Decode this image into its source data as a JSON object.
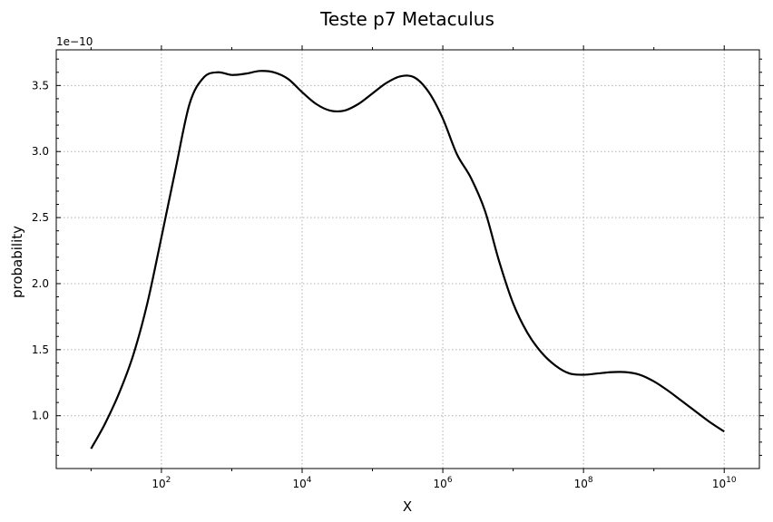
{
  "chart_data": {
    "type": "line",
    "title": "Teste p7 Metaculus",
    "xlabel": "X",
    "ylabel": "probability",
    "xscale": "log",
    "xlim": [
      3.2,
      31623000000
    ],
    "ylim": [
      6e-11,
      3.77e-10
    ],
    "y_offset_label": "1e−10",
    "x_major_ticks": [
      100,
      10000,
      1000000,
      100000000,
      10000000000
    ],
    "x_tick_labels": [
      {
        "base": "10",
        "exp": "2"
      },
      {
        "base": "10",
        "exp": "4"
      },
      {
        "base": "10",
        "exp": "6"
      },
      {
        "base": "10",
        "exp": "8"
      },
      {
        "base": "10",
        "exp": "10"
      }
    ],
    "y_ticks": [
      1e-10,
      1.5e-10,
      2e-10,
      2.5e-10,
      3e-10,
      3.5e-10
    ],
    "y_tick_labels": [
      "1.0",
      "1.5",
      "2.0",
      "2.5",
      "3.0",
      "3.5"
    ],
    "grid": true,
    "series": [
      {
        "color": "#000000",
        "x": [
          10,
          15.8,
          25,
          39.8,
          63,
          100,
          158,
          251,
          398,
          631,
          1000,
          1585,
          2512,
          3981,
          6310,
          10000,
          15849,
          25119,
          39811,
          63096,
          100000,
          158489,
          251189,
          398107,
          630957,
          1000000,
          1584893,
          2511886,
          3981072,
          6309573,
          10000000,
          15848932,
          25118864,
          39810717,
          63095734,
          100000000,
          158489319,
          251188643,
          398107171,
          630957344,
          1000000000,
          1584893192,
          2511886432,
          3981071706,
          6309573445,
          10000000000
        ],
        "y": [
          7.5e-11,
          9.4e-11,
          1.17e-10,
          1.46e-10,
          1.85e-10,
          2.35e-10,
          2.86e-10,
          3.36e-10,
          3.56e-10,
          3.6e-10,
          3.58e-10,
          3.59e-10,
          3.61e-10,
          3.6e-10,
          3.55e-10,
          3.45e-10,
          3.36e-10,
          3.31e-10,
          3.31e-10,
          3.36e-10,
          3.44e-10,
          3.52e-10,
          3.57e-10,
          3.56e-10,
          3.45e-10,
          3.25e-10,
          2.98e-10,
          2.8e-10,
          2.55e-10,
          2.17e-10,
          1.85e-10,
          1.63e-10,
          1.48e-10,
          1.38e-10,
          1.32e-10,
          1.31e-10,
          1.32e-10,
          1.33e-10,
          1.33e-10,
          1.31e-10,
          1.26e-10,
          1.19e-10,
          1.11e-10,
          1.03e-10,
          9.5e-11,
          8.8e-11
        ]
      }
    ]
  }
}
